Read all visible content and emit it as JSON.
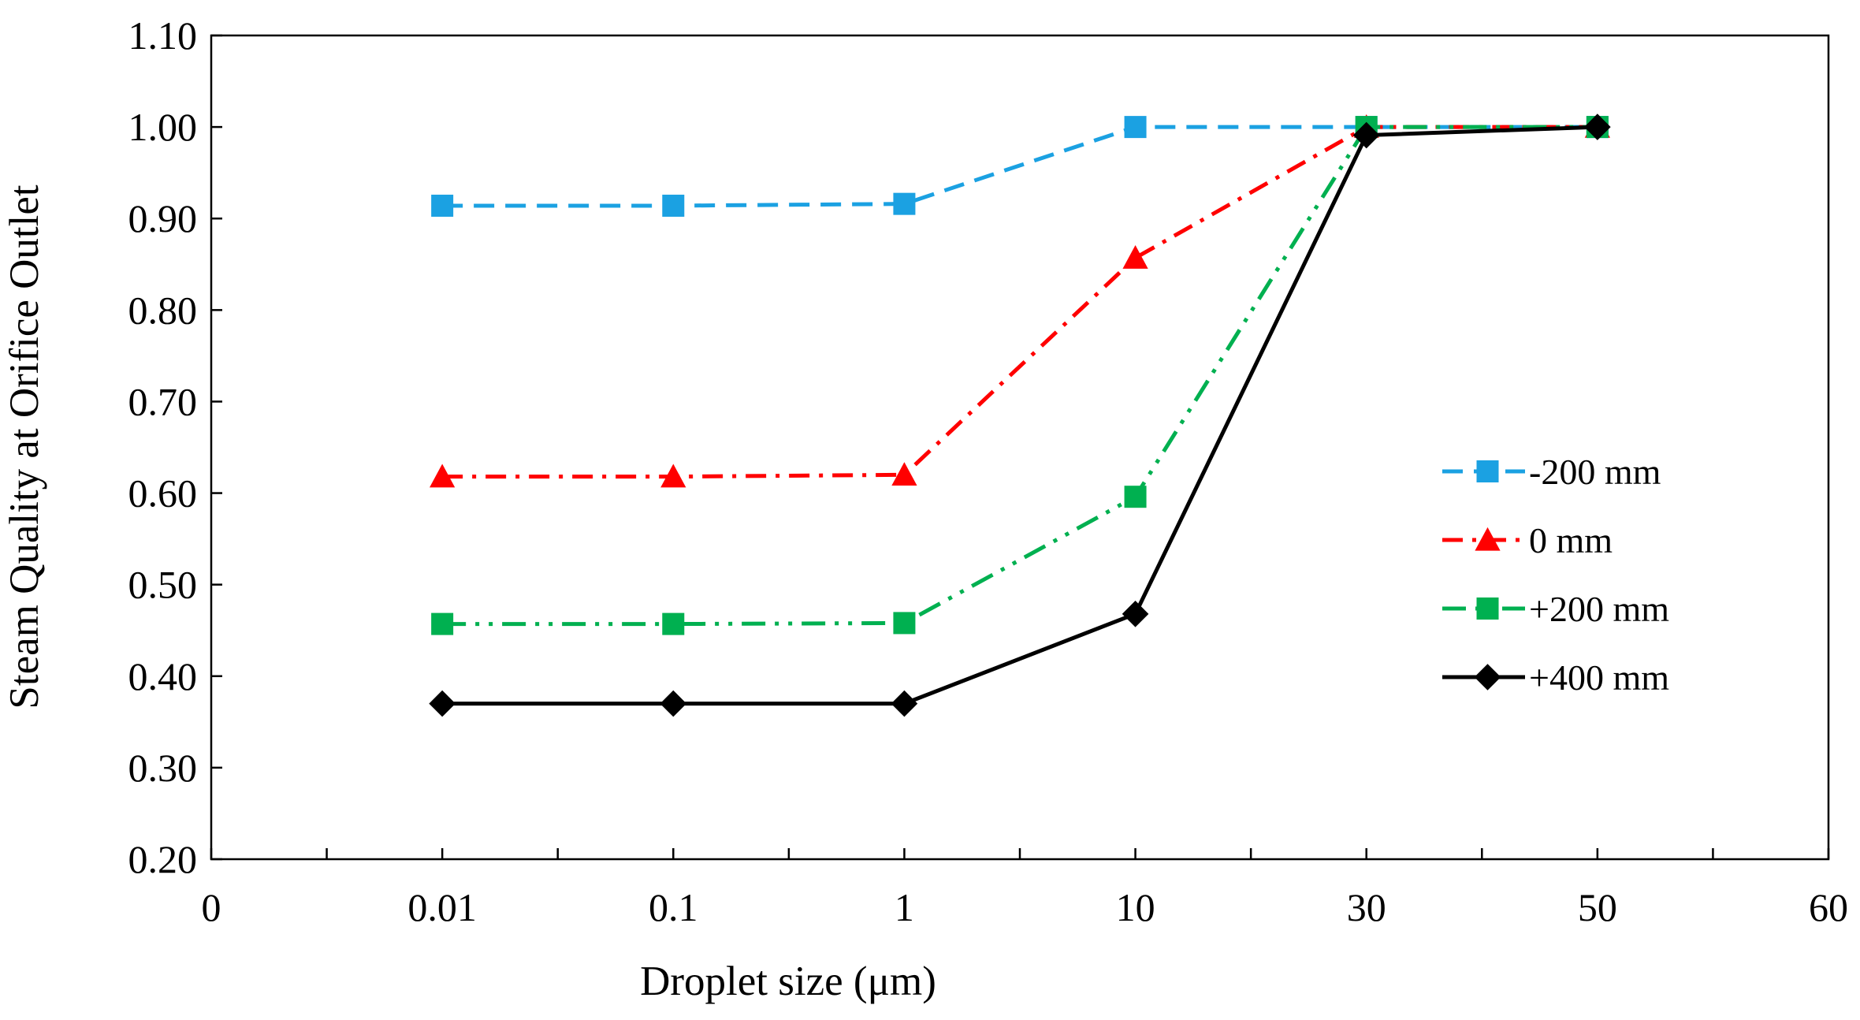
{
  "chart_data": {
    "type": "line",
    "title": "",
    "xlabel": "Droplet size (μm)",
    "ylabel": "Steam Quality at Orifice Outlet",
    "xlim": [
      0,
      60
    ],
    "ylim": [
      0.2,
      1.1
    ],
    "x_ticks": [
      {
        "value": 0,
        "label": "0"
      },
      {
        "value": 10,
        "label": "0.01"
      },
      {
        "value": 20,
        "label": "0.1"
      },
      {
        "value": 30,
        "label": "1"
      },
      {
        "value": 40,
        "label": "10"
      },
      {
        "value": 50,
        "label": "30"
      },
      {
        "value": 60,
        "label": "50"
      },
      {
        "value": 70,
        "label": "60"
      }
    ],
    "y_ticks": [
      "0.20",
      "0.30",
      "0.40",
      "0.50",
      "0.60",
      "0.70",
      "0.80",
      "0.90",
      "1.00",
      "1.10"
    ],
    "categories": [
      "0.01",
      "0.1",
      "1",
      "10",
      "30",
      "50"
    ],
    "grid": false,
    "legend_position": "right",
    "series": [
      {
        "name": "-200 mm",
        "color": "#1BA1E2",
        "marker": "square",
        "dash": "dash",
        "values": [
          0.914,
          0.914,
          0.916,
          1.0,
          1.0,
          1.0
        ]
      },
      {
        "name": "0 mm",
        "color": "#FF0000",
        "marker": "triangle",
        "dash": "dashdot",
        "values": [
          0.618,
          0.618,
          0.62,
          0.857,
          1.0,
          1.0
        ]
      },
      {
        "name": "+200 mm",
        "color": "#00B050",
        "marker": "square",
        "dash": "dashdotdot",
        "values": [
          0.457,
          0.457,
          0.458,
          0.596,
          1.0,
          1.0
        ]
      },
      {
        "name": "+400 mm",
        "color": "#000000",
        "marker": "diamond",
        "dash": "solid",
        "values": [
          0.37,
          0.37,
          0.37,
          0.468,
          0.991,
          1.0
        ]
      }
    ]
  }
}
